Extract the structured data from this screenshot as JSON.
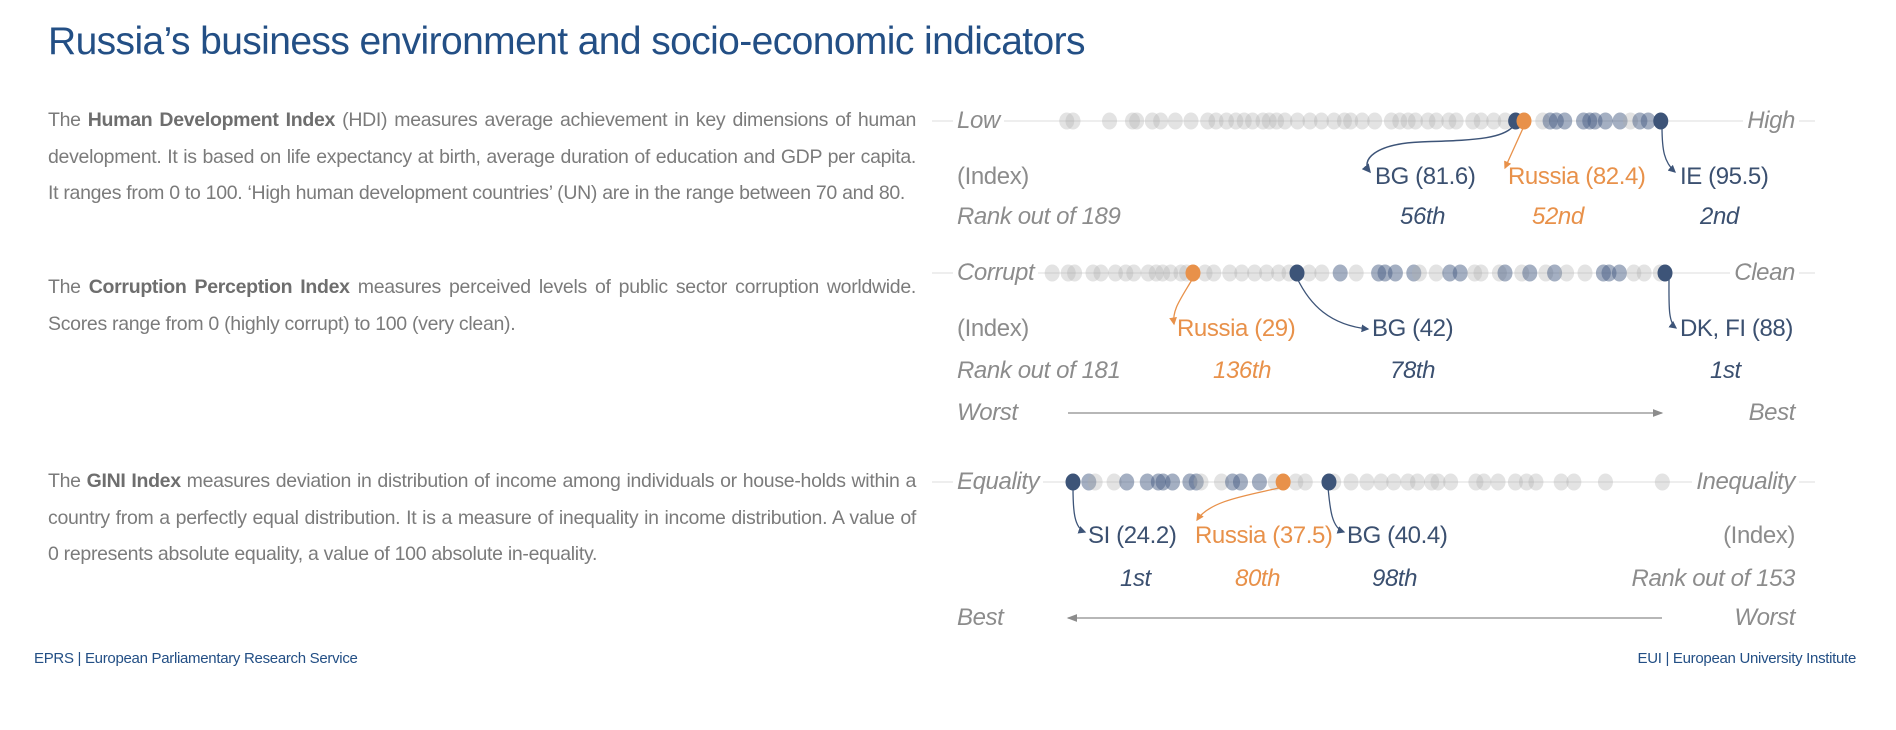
{
  "title": "Russia’s business environment and socio-economic indicators",
  "paragraphs": {
    "hdi": {
      "pre": "The ",
      "bold": "Human Development Index",
      "post": " (HDI) measures average achievement in key dimensions of human development. It is based on life expectancy at birth, average duration of education and GDP per capita. It ranges from 0 to 100. ‘High human development countries’ (UN) are in the range between 70 and 80."
    },
    "cpi": {
      "pre": "The ",
      "bold": "Corruption Perception Index",
      "post": " measures perceived levels of public sector corruption worldwide. Scores range from 0 (highly corrupt) to 100 (very clean)."
    },
    "gini": {
      "pre": "The ",
      "bold": "GINI Index",
      "post": " measures deviation in distribution of income among individuals or house-holds within a country from a perfectly equal distribution. It is a measure of inequality in income distribution. A value of 0 represents absolute equality, a value of 100 absolute in-equality."
    }
  },
  "footer": {
    "left": "EPRS | European Parliamentary Research Service",
    "right": "EUI | European University Institute"
  },
  "colors": {
    "title": "#234f85",
    "highlight_navy": "#3d5478",
    "russia": "#e8914a",
    "eu_dots": "#4a5f85",
    "other_dots": "#b0b0b0"
  },
  "chart_data": [
    {
      "type": "scatter",
      "id": "hdi",
      "left_label": "Low",
      "right_label": "High",
      "unit_label": "(Index)",
      "rank_label": "Rank out of 189",
      "highlights": [
        {
          "name": "BG (81.6)",
          "value": 81.6,
          "rank": "56th",
          "color": "navy"
        },
        {
          "name": "Russia (82.4)",
          "value": 82.4,
          "rank": "52nd",
          "color": "orange"
        },
        {
          "name": "IE (95.5)",
          "value": 95.5,
          "rank": "2nd",
          "color": "navy"
        }
      ],
      "points": [
        [
          38.6,
          "o"
        ],
        [
          39.2,
          "o"
        ],
        [
          42.7,
          "o"
        ],
        [
          44.9,
          "o"
        ],
        [
          45.3,
          "o"
        ],
        [
          46.8,
          "o"
        ],
        [
          47.6,
          "o"
        ],
        [
          49.0,
          "o"
        ],
        [
          50.5,
          "o"
        ],
        [
          52.1,
          "o"
        ],
        [
          52.9,
          "o"
        ],
        [
          53.9,
          "o"
        ],
        [
          54.8,
          "o"
        ],
        [
          55.6,
          "o"
        ],
        [
          56.4,
          "o"
        ],
        [
          57.4,
          "o"
        ],
        [
          58.0,
          "o"
        ],
        [
          58.7,
          "o"
        ],
        [
          59.5,
          "o"
        ],
        [
          60.7,
          "o"
        ],
        [
          61.9,
          "o"
        ],
        [
          63.0,
          "o"
        ],
        [
          64.2,
          "o"
        ],
        [
          65.2,
          "o"
        ],
        [
          65.8,
          "o"
        ],
        [
          66.9,
          "o"
        ],
        [
          68.1,
          "o"
        ],
        [
          69.7,
          "o"
        ],
        [
          70.5,
          "o"
        ],
        [
          71.3,
          "o"
        ],
        [
          72.0,
          "o"
        ],
        [
          73.2,
          "o"
        ],
        [
          74.0,
          "o"
        ],
        [
          75.2,
          "o"
        ],
        [
          75.9,
          "o"
        ],
        [
          77.5,
          "o"
        ],
        [
          78.3,
          "o"
        ],
        [
          79.5,
          "o"
        ],
        [
          80.6,
          "o"
        ],
        [
          84.2,
          "o"
        ],
        [
          84.9,
          "eu"
        ],
        [
          85.5,
          "eu"
        ],
        [
          86.3,
          "eu"
        ],
        [
          88.1,
          "eu"
        ],
        [
          88.7,
          "eu"
        ],
        [
          89.2,
          "eu"
        ],
        [
          90.2,
          "eu"
        ],
        [
          91.6,
          "eu"
        ],
        [
          92.6,
          "o"
        ],
        [
          93.5,
          "eu"
        ],
        [
          94.3,
          "eu"
        ]
      ]
    },
    {
      "type": "scatter",
      "id": "cpi",
      "left_label": "Corrupt",
      "right_label": "Clean",
      "unit_label": "(Index)",
      "rank_label": "Rank out of 181",
      "direction": {
        "left": "Worst",
        "right": "Best",
        "arrow": "right"
      },
      "highlights": [
        {
          "name": "Russia (29)",
          "value": 29,
          "rank": "136th",
          "color": "orange"
        },
        {
          "name": "BG (42)",
          "value": 42,
          "rank": "78th",
          "color": "navy"
        },
        {
          "name": "DK, FI (88)",
          "value": 88,
          "rank": "1st",
          "color": "navy"
        }
      ],
      "points": [
        [
          11.4,
          "o"
        ],
        [
          13.4,
          "o"
        ],
        [
          14.2,
          "o"
        ],
        [
          16.5,
          "o"
        ],
        [
          17.5,
          "o"
        ],
        [
          19.3,
          "o"
        ],
        [
          20.6,
          "o"
        ],
        [
          21.6,
          "o"
        ],
        [
          23.4,
          "o"
        ],
        [
          24.4,
          "o"
        ],
        [
          25.2,
          "o"
        ],
        [
          26.2,
          "o"
        ],
        [
          27.5,
          "o"
        ],
        [
          28.2,
          "o"
        ],
        [
          30.5,
          "o"
        ],
        [
          31.6,
          "o"
        ],
        [
          33.6,
          "o"
        ],
        [
          35.1,
          "o"
        ],
        [
          36.7,
          "o"
        ],
        [
          38.2,
          "o"
        ],
        [
          39.7,
          "o"
        ],
        [
          41.0,
          "o"
        ],
        [
          43.5,
          "o"
        ],
        [
          45.1,
          "o"
        ],
        [
          47.4,
          "eu"
        ],
        [
          49.4,
          "o"
        ],
        [
          52.2,
          "eu"
        ],
        [
          53.0,
          "eu"
        ],
        [
          54.3,
          "eu"
        ],
        [
          56.6,
          "eu"
        ],
        [
          57.3,
          "o"
        ],
        [
          59.4,
          "o"
        ],
        [
          61.1,
          "eu"
        ],
        [
          62.4,
          "eu"
        ],
        [
          64.2,
          "o"
        ],
        [
          65.0,
          "o"
        ],
        [
          67.3,
          "o"
        ],
        [
          68.0,
          "eu"
        ],
        [
          70.1,
          "o"
        ],
        [
          71.1,
          "eu"
        ],
        [
          73.1,
          "o"
        ],
        [
          74.2,
          "eu"
        ],
        [
          75.7,
          "o"
        ],
        [
          78.0,
          "o"
        ],
        [
          80.3,
          "eu"
        ],
        [
          81.0,
          "eu"
        ],
        [
          82.3,
          "eu"
        ],
        [
          84.1,
          "o"
        ],
        [
          85.4,
          "o"
        ],
        [
          87.4,
          "o"
        ]
      ]
    },
    {
      "type": "scatter",
      "id": "gini",
      "left_label": "Equality",
      "right_label": "Inequality",
      "unit_label": "(Index)",
      "rank_label": "Rank out of 153",
      "direction": {
        "left": "Best",
        "right": "Worst",
        "arrow": "left"
      },
      "highlights": [
        {
          "name": "SI (24.2)",
          "value": 24.2,
          "rank": "1st",
          "color": "navy"
        },
        {
          "name": "Russia (37.5)",
          "value": 37.5,
          "rank": "80th",
          "color": "orange"
        },
        {
          "name": "BG (40.4)",
          "value": 40.4,
          "rank": "98th",
          "color": "navy"
        }
      ],
      "points": [
        [
          25.2,
          "eu"
        ],
        [
          25.6,
          "o"
        ],
        [
          26.8,
          "o"
        ],
        [
          27.6,
          "eu"
        ],
        [
          28.9,
          "eu"
        ],
        [
          29.6,
          "eu"
        ],
        [
          29.9,
          "eu"
        ],
        [
          30.5,
          "eu"
        ],
        [
          31.6,
          "eu"
        ],
        [
          32.0,
          "eu"
        ],
        [
          32.3,
          "o"
        ],
        [
          33.6,
          "o"
        ],
        [
          34.3,
          "eu"
        ],
        [
          34.8,
          "eu"
        ],
        [
          36.0,
          "eu"
        ],
        [
          37.0,
          "o"
        ],
        [
          38.3,
          "o"
        ],
        [
          38.9,
          "o"
        ],
        [
          40.7,
          "o"
        ],
        [
          41.8,
          "o"
        ],
        [
          42.8,
          "o"
        ],
        [
          43.7,
          "o"
        ],
        [
          44.5,
          "o"
        ],
        [
          45.4,
          "o"
        ],
        [
          46.0,
          "o"
        ],
        [
          46.9,
          "o"
        ],
        [
          47.3,
          "o"
        ],
        [
          48.1,
          "o"
        ],
        [
          49.7,
          "o"
        ],
        [
          50.2,
          "o"
        ],
        [
          51.1,
          "o"
        ],
        [
          52.2,
          "o"
        ],
        [
          52.9,
          "o"
        ],
        [
          53.5,
          "o"
        ],
        [
          55.1,
          "o"
        ],
        [
          55.9,
          "o"
        ],
        [
          57.9,
          "o"
        ],
        [
          61.5,
          "o"
        ]
      ]
    }
  ]
}
